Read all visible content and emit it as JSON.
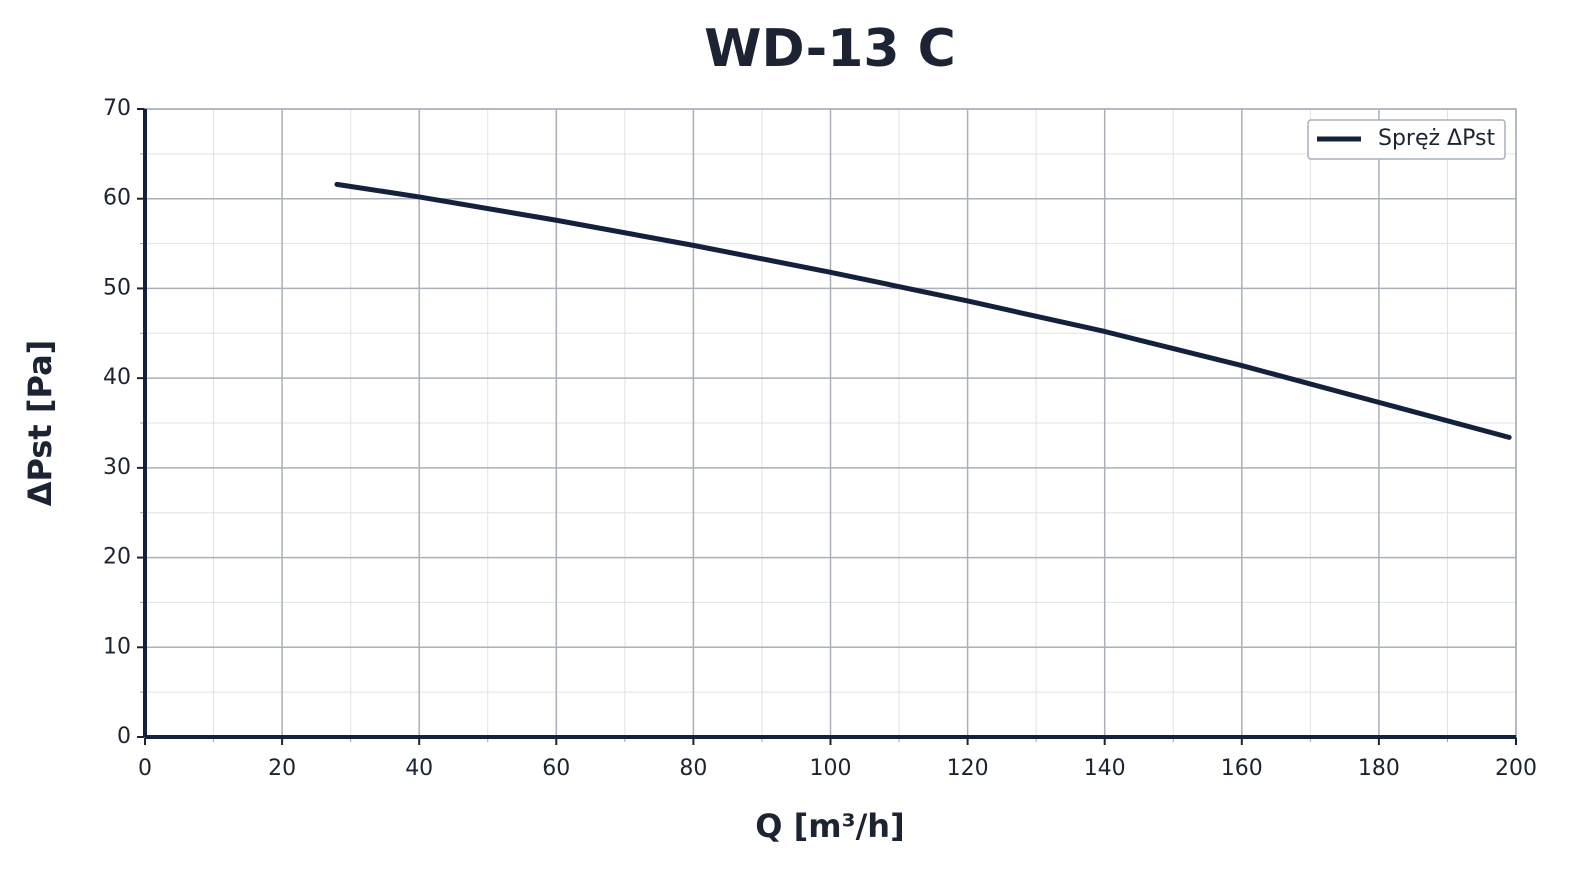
{
  "chart_data": {
    "type": "line",
    "title": "WD-13 C",
    "x_label": "Q [m³/h]",
    "y_label": "ΔPst [Pa]",
    "xlim": [
      0,
      200
    ],
    "ylim": [
      0,
      70
    ],
    "xticks": [
      0,
      20,
      40,
      60,
      80,
      100,
      120,
      140,
      160,
      180,
      200
    ],
    "yticks": [
      0,
      10,
      20,
      30,
      40,
      50,
      60,
      70
    ],
    "x_minor_ticks": [
      10,
      30,
      50,
      70,
      90,
      110,
      130,
      150,
      170,
      190
    ],
    "y_minor_ticks": [
      5,
      15,
      25,
      35,
      45,
      55,
      65
    ],
    "grid": true,
    "legend": "upper right",
    "x": [
      28,
      40,
      60,
      80,
      100,
      120,
      140,
      160,
      180,
      199
    ],
    "series": [
      {
        "name": "Spręż ΔPst",
        "color": "#14213d",
        "values": [
          61.6,
          60.2,
          57.6,
          54.8,
          51.8,
          48.6,
          45.2,
          41.4,
          37.3,
          33.4
        ]
      }
    ]
  }
}
